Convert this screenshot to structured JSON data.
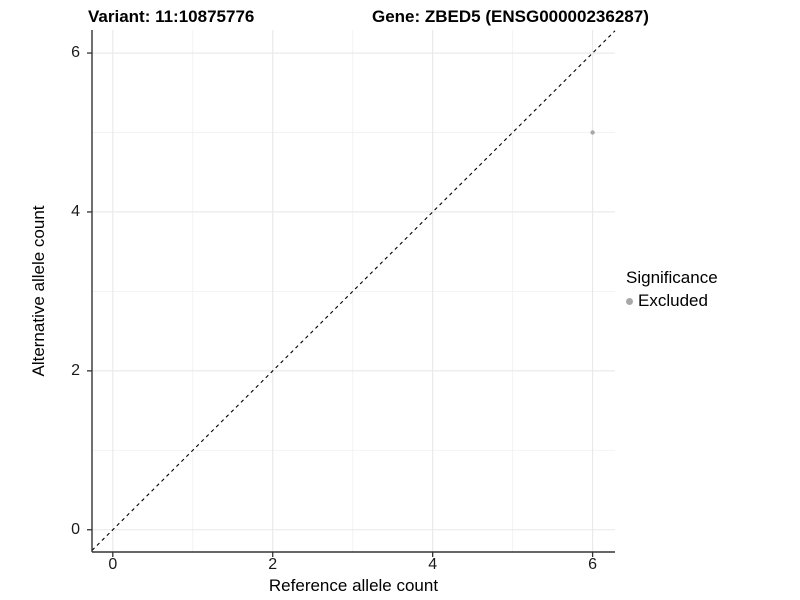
{
  "header": {
    "variant_title": "Variant: 11:10875776",
    "gene_title": "Gene: ZBED5 (ENSG00000236287)"
  },
  "legend": {
    "title": "Significance",
    "items": [
      {
        "label": "Excluded",
        "color": "#a8a8a8"
      }
    ]
  },
  "chart_data": {
    "type": "scatter",
    "title": "Variant: 11:10875776   Gene: ZBED5 (ENSG00000236287)",
    "xlabel": "Reference allele count",
    "ylabel": "Alternative allele count",
    "xlim": [
      -0.26,
      6.28
    ],
    "ylim": [
      -0.28,
      6.29
    ],
    "x_ticks": [
      0,
      2,
      4,
      6
    ],
    "y_ticks": [
      0,
      2,
      4,
      6
    ],
    "x_minor_ticks": [
      1,
      3,
      5
    ],
    "y_minor_ticks": [
      1,
      3,
      5
    ],
    "grid": true,
    "legend_position": "right",
    "series": [
      {
        "name": "Excluded",
        "color": "#a8a8a8",
        "point_radius": 2.2,
        "points": [
          {
            "x": 6,
            "y": 5
          }
        ]
      }
    ],
    "reference_line": {
      "style": "dashed",
      "slope": 1,
      "intercept": 0,
      "color": "#000000"
    }
  },
  "colors": {
    "background": "#ffffff",
    "grid_major": "#e8e8e8",
    "grid_minor": "#f2f2f2",
    "axis": "#333333",
    "text": "#000000"
  }
}
